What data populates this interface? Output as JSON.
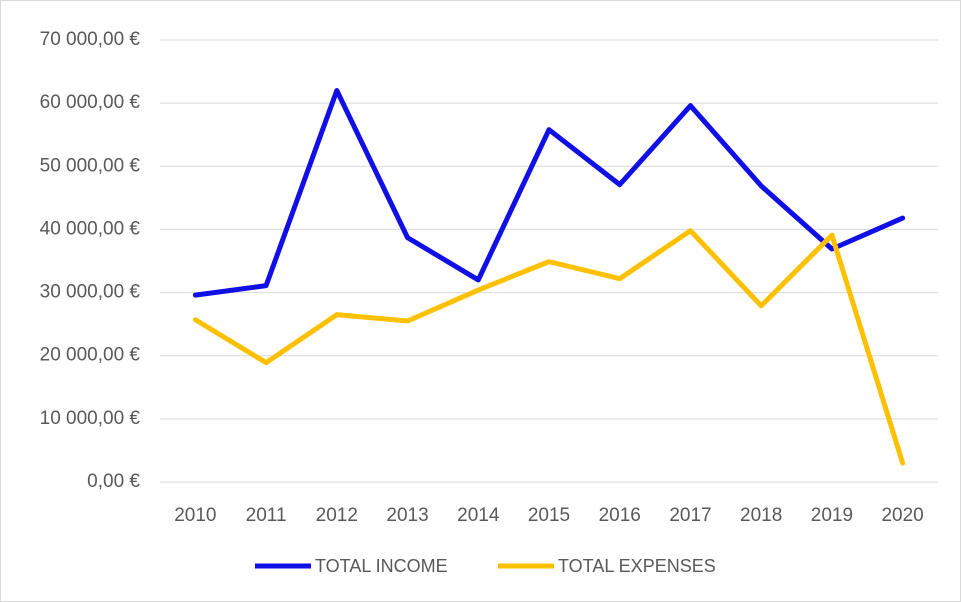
{
  "chart_data": {
    "type": "line",
    "categories": [
      "2010",
      "2011",
      "2012",
      "2013",
      "2014",
      "2015",
      "2016",
      "2017",
      "2018",
      "2019",
      "2020"
    ],
    "series": [
      {
        "name": "TOTAL INCOME",
        "color": "#0f0fe6",
        "values": [
          29600,
          31100,
          62000,
          38700,
          32000,
          55800,
          47100,
          59600,
          46900,
          36900,
          41800
        ]
      },
      {
        "name": "TOTAL EXPENSES",
        "color": "#ffc000",
        "values": [
          25700,
          18900,
          26500,
          25500,
          30400,
          34900,
          32200,
          39800,
          27900,
          39100,
          3000
        ]
      }
    ],
    "ylim": [
      0,
      70000
    ],
    "yticks": [
      {
        "value": 0,
        "label": "0,00 €"
      },
      {
        "value": 10000,
        "label": "10 000,00 €"
      },
      {
        "value": 20000,
        "label": "20 000,00 €"
      },
      {
        "value": 30000,
        "label": "30 000,00 €"
      },
      {
        "value": 40000,
        "label": "40 000,00 €"
      },
      {
        "value": 50000,
        "label": "50 000,00 €"
      },
      {
        "value": 60000,
        "label": "60 000,00 €"
      },
      {
        "value": 70000,
        "label": "70 000,00 €"
      }
    ],
    "grid": true,
    "legend": "bottom"
  }
}
